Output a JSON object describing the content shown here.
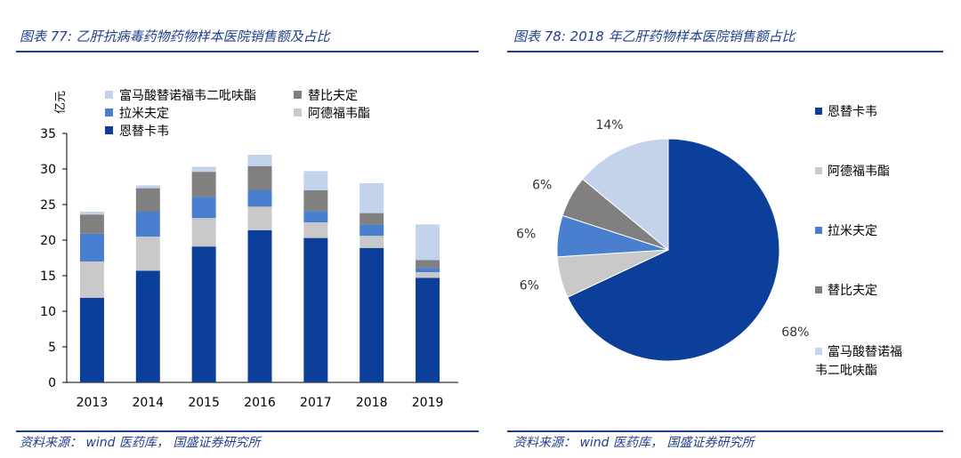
{
  "left_panel": {
    "title": "图表 77: 乙肝抗病毒药物药物样本医院销售额及占比",
    "source": "资料来源： wind 医药库， 国盛证券研究所"
  },
  "right_panel": {
    "title": "图表 78: 2018 年乙肝药物样本医院销售额占比",
    "source": "资料来源： wind 医药库， 国盛证券研究所"
  },
  "colors": {
    "title": "#1f3e8c",
    "entecavir": "#0b3f99",
    "adefovir": "#c9c9c9",
    "lamivudine": "#4a7fcf",
    "telbivudine": "#808080",
    "tenofovir": "#c3d3ec"
  },
  "chart_data": [
    {
      "type": "bar",
      "stacked": true,
      "ylabel": "亿元",
      "ylim": [
        0,
        35
      ],
      "yticks": [
        "0",
        "5",
        "10",
        "15",
        "20",
        "25",
        "30",
        "35"
      ],
      "categories": [
        "2013",
        "2014",
        "2015",
        "2016",
        "2017",
        "2018",
        "2019"
      ],
      "series": [
        {
          "name": "恩替卡韦",
          "color": "#0b3f99",
          "values": [
            11.9,
            15.7,
            19.1,
            21.4,
            20.3,
            18.9,
            14.7
          ]
        },
        {
          "name": "阿德福韦酯",
          "color": "#c9c9c9",
          "values": [
            5.1,
            4.8,
            4.0,
            3.3,
            2.2,
            1.7,
            0.8
          ]
        },
        {
          "name": "拉米夫定",
          "color": "#4a7fcf",
          "values": [
            3.9,
            3.5,
            3.0,
            2.3,
            1.6,
            1.6,
            0.6
          ]
        },
        {
          "name": "替比夫定",
          "color": "#808080",
          "values": [
            2.7,
            3.3,
            3.5,
            3.4,
            2.9,
            1.6,
            1.1
          ]
        },
        {
          "name": "富马酸替诺福韦二吡呋酯",
          "color": "#c3d3ec",
          "values": [
            0.4,
            0.4,
            0.7,
            1.6,
            2.7,
            4.2,
            5.0
          ]
        }
      ],
      "legend": [
        {
          "label": "富马酸替诺福韦二吡呋酯",
          "color": "#c3d3ec"
        },
        {
          "label": "替比夫定",
          "color": "#808080"
        },
        {
          "label": "拉米夫定",
          "color": "#4a7fcf"
        },
        {
          "label": "阿德福韦酯",
          "color": "#c9c9c9"
        },
        {
          "label": "恩替卡韦",
          "color": "#0b3f99"
        }
      ],
      "legend_position": "top-left"
    },
    {
      "type": "pie",
      "slices": [
        {
          "name": "恩替卡韦",
          "value": 68,
          "label": "68%",
          "color": "#0b3f99"
        },
        {
          "name": "阿德福韦酯",
          "value": 6,
          "label": "6%",
          "color": "#c9c9c9"
        },
        {
          "name": "拉米夫定",
          "value": 6,
          "label": "6%",
          "color": "#4a7fcf"
        },
        {
          "name": "替比夫定",
          "value": 6,
          "label": "6%",
          "color": "#808080"
        },
        {
          "name": "富马酸替诺福韦二吡呋酯",
          "value": 14,
          "label": "14%",
          "color": "#c3d3ec"
        }
      ],
      "legend": [
        {
          "label": "恩替卡韦",
          "color": "#0b3f99"
        },
        {
          "label": "阿德福韦酯",
          "color": "#c9c9c9"
        },
        {
          "label": "拉米夫定",
          "color": "#4a7fcf"
        },
        {
          "label": "替比夫定",
          "color": "#808080"
        },
        {
          "label": "富马酸替诺福韦二吡呋酯",
          "color": "#c3d3ec"
        }
      ],
      "legend_position": "right"
    }
  ]
}
